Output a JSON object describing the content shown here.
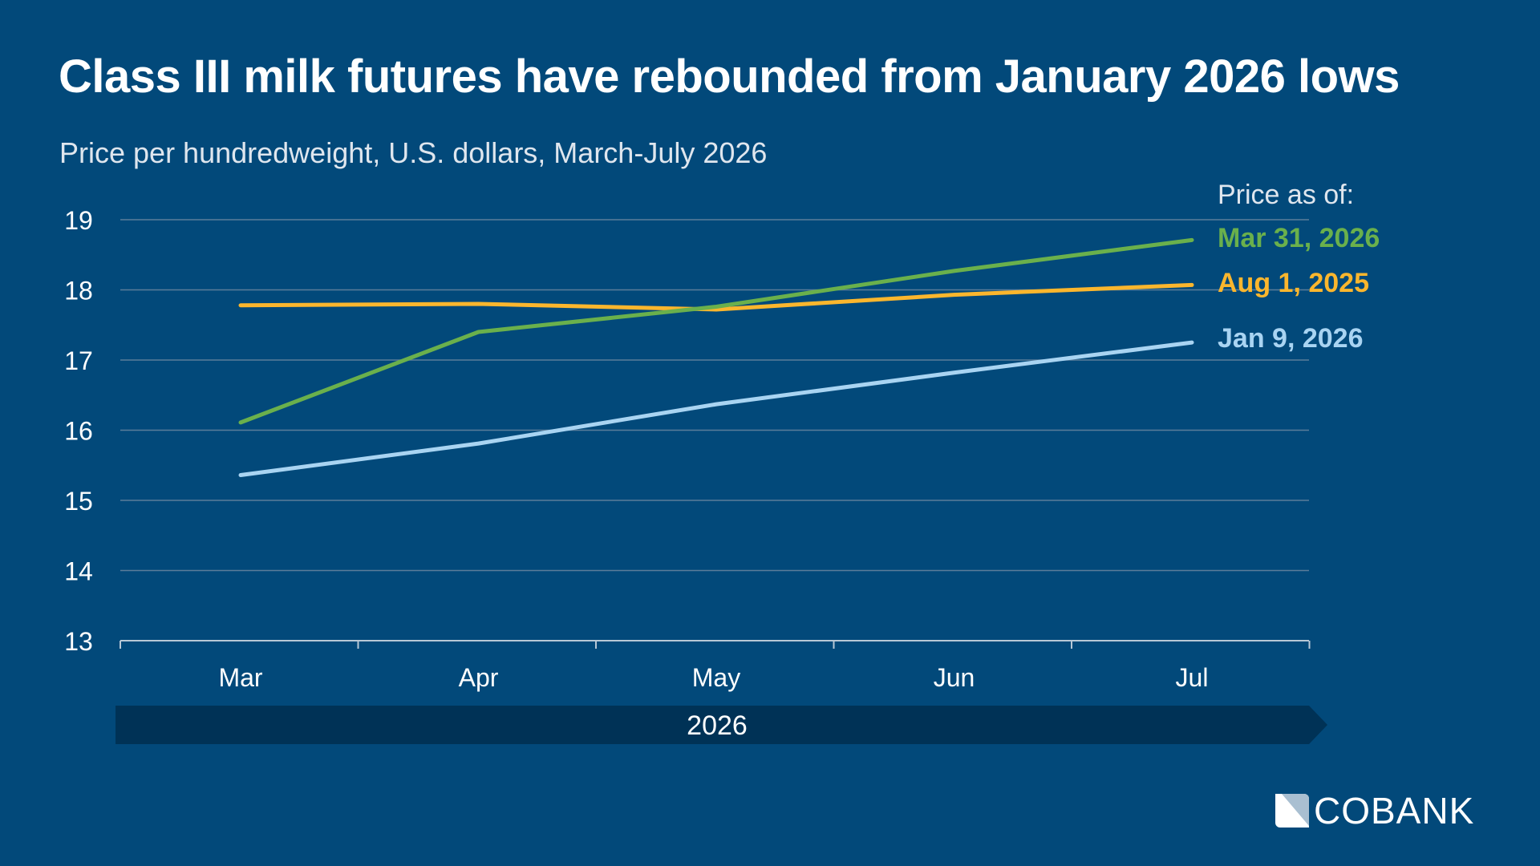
{
  "chart_data": {
    "type": "line",
    "title": "Class III milk futures have rebounded from January 2026 lows",
    "subtitle": "Price per hundredweight, U.S. dollars, March-July 2026",
    "categories": [
      "Mar",
      "Apr",
      "May",
      "Jun",
      "Jul"
    ],
    "xgroup_label": "2026",
    "ylim": [
      13,
      19
    ],
    "yticks": [
      "13",
      "14",
      "15",
      "16",
      "17",
      "18",
      "19"
    ],
    "grid": true,
    "legend_title": "Price as of:",
    "legend_placement": "right",
    "series": [
      {
        "name": "Mar 31, 2026",
        "color": "#6ab04c",
        "values": [
          16.11,
          17.4,
          17.76,
          18.27,
          18.71
        ]
      },
      {
        "name": "Aug 1, 2025",
        "color": "#fbb62d",
        "values": [
          17.78,
          17.8,
          17.72,
          17.93,
          18.07
        ]
      },
      {
        "name": "Jan 9, 2026",
        "color": "#a9d4f2",
        "values": [
          15.36,
          15.81,
          16.37,
          16.82,
          17.25
        ]
      }
    ]
  },
  "logo": {
    "text": "COBANK"
  }
}
